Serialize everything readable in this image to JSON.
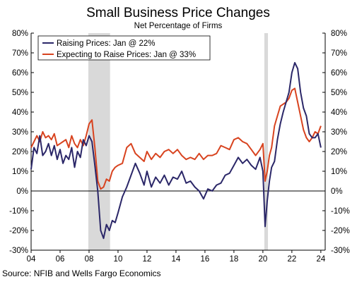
{
  "chart_data": {
    "type": "line",
    "title": "Small Business Price Changes",
    "subtitle": "Net Percentage of Firms",
    "source": "Source: NFIB and Wells Fargo Economics",
    "x_ticks": [
      "04",
      "06",
      "08",
      "10",
      "12",
      "14",
      "16",
      "18",
      "20",
      "22",
      "24"
    ],
    "y_ticks": [
      "80%",
      "70%",
      "60%",
      "50%",
      "40%",
      "30%",
      "20%",
      "10%",
      "0%",
      "-10%",
      "-20%",
      "-30%"
    ],
    "xlim": [
      2004.0,
      2024.3
    ],
    "ylim": [
      -30,
      80
    ],
    "recession_bands": [
      [
        2007.95,
        2009.45
      ],
      [
        2020.1,
        2020.35
      ]
    ],
    "legend_position": "top-left",
    "series": [
      {
        "name": "Raising Prices: Jan @ 22%",
        "color": "#2b2768",
        "x": [
          2004.0,
          2004.2,
          2004.4,
          2004.6,
          2004.8,
          2005.0,
          2005.2,
          2005.4,
          2005.6,
          2005.8,
          2006.0,
          2006.2,
          2006.4,
          2006.6,
          2006.8,
          2007.0,
          2007.2,
          2007.4,
          2007.6,
          2007.8,
          2008.0,
          2008.2,
          2008.4,
          2008.6,
          2008.8,
          2009.0,
          2009.2,
          2009.4,
          2009.6,
          2009.8,
          2010.0,
          2010.3,
          2010.6,
          2010.9,
          2011.2,
          2011.5,
          2011.8,
          2012.0,
          2012.3,
          2012.6,
          2012.9,
          2013.2,
          2013.5,
          2013.8,
          2014.1,
          2014.4,
          2014.7,
          2015.0,
          2015.3,
          2015.6,
          2015.9,
          2016.2,
          2016.5,
          2016.8,
          2017.1,
          2017.4,
          2017.7,
          2018.0,
          2018.3,
          2018.6,
          2018.9,
          2019.2,
          2019.5,
          2019.8,
          2020.0,
          2020.15,
          2020.3,
          2020.45,
          2020.6,
          2020.8,
          2021.0,
          2021.2,
          2021.4,
          2021.6,
          2021.8,
          2022.0,
          2022.2,
          2022.4,
          2022.6,
          2022.8,
          2023.0,
          2023.2,
          2023.4,
          2023.6,
          2023.8,
          2024.0
        ],
        "values": [
          11,
          22,
          19,
          28,
          18,
          20,
          24,
          18,
          23,
          16,
          21,
          14,
          18,
          16,
          22,
          12,
          20,
          17,
          26,
          23,
          28,
          25,
          13,
          0,
          -20,
          -24,
          -17,
          -20,
          -15,
          -16,
          -11,
          -3,
          2,
          8,
          14,
          9,
          3,
          10,
          2,
          7,
          4,
          8,
          3,
          7,
          6,
          10,
          4,
          5,
          2,
          0,
          -4,
          1,
          0,
          3,
          4,
          8,
          9,
          13,
          17,
          14,
          16,
          13,
          11,
          17,
          10,
          -18,
          -5,
          5,
          12,
          15,
          26,
          34,
          40,
          45,
          50,
          60,
          65,
          62,
          50,
          42,
          38,
          29,
          27,
          27,
          29,
          22
        ]
      },
      {
        "name": "Expecting to Raise Prices: Jan @ 33%",
        "color": "#d8431f",
        "x": [
          2004.0,
          2004.2,
          2004.4,
          2004.6,
          2004.8,
          2005.0,
          2005.2,
          2005.4,
          2005.6,
          2005.8,
          2006.0,
          2006.2,
          2006.4,
          2006.6,
          2006.8,
          2007.0,
          2007.2,
          2007.4,
          2007.6,
          2007.8,
          2008.0,
          2008.2,
          2008.4,
          2008.6,
          2008.8,
          2009.0,
          2009.2,
          2009.4,
          2009.6,
          2009.8,
          2010.0,
          2010.3,
          2010.6,
          2010.9,
          2011.2,
          2011.5,
          2011.8,
          2012.0,
          2012.3,
          2012.6,
          2012.9,
          2013.2,
          2013.5,
          2013.8,
          2014.1,
          2014.4,
          2014.7,
          2015.0,
          2015.3,
          2015.6,
          2015.9,
          2016.2,
          2016.5,
          2016.8,
          2017.1,
          2017.4,
          2017.7,
          2018.0,
          2018.3,
          2018.6,
          2018.9,
          2019.2,
          2019.5,
          2019.8,
          2020.0,
          2020.15,
          2020.3,
          2020.45,
          2020.6,
          2020.8,
          2021.0,
          2021.2,
          2021.4,
          2021.6,
          2021.8,
          2022.0,
          2022.2,
          2022.4,
          2022.6,
          2022.8,
          2023.0,
          2023.2,
          2023.4,
          2023.6,
          2023.8,
          2024.0
        ],
        "values": [
          22,
          25,
          28,
          25,
          30,
          27,
          28,
          26,
          29,
          23,
          24,
          25,
          26,
          22,
          28,
          24,
          22,
          26,
          23,
          28,
          34,
          36,
          22,
          5,
          1,
          2,
          6,
          5,
          10,
          12,
          13,
          14,
          22,
          24,
          19,
          17,
          15,
          20,
          16,
          19,
          17,
          20,
          21,
          19,
          21,
          18,
          16,
          17,
          16,
          19,
          16,
          18,
          18,
          19,
          23,
          22,
          21,
          26,
          27,
          25,
          24,
          21,
          18,
          21,
          24,
          5,
          10,
          18,
          22,
          33,
          38,
          43,
          44,
          45,
          47,
          51,
          52,
          45,
          38,
          31,
          27,
          25,
          27,
          30,
          29,
          33
        ]
      }
    ]
  }
}
